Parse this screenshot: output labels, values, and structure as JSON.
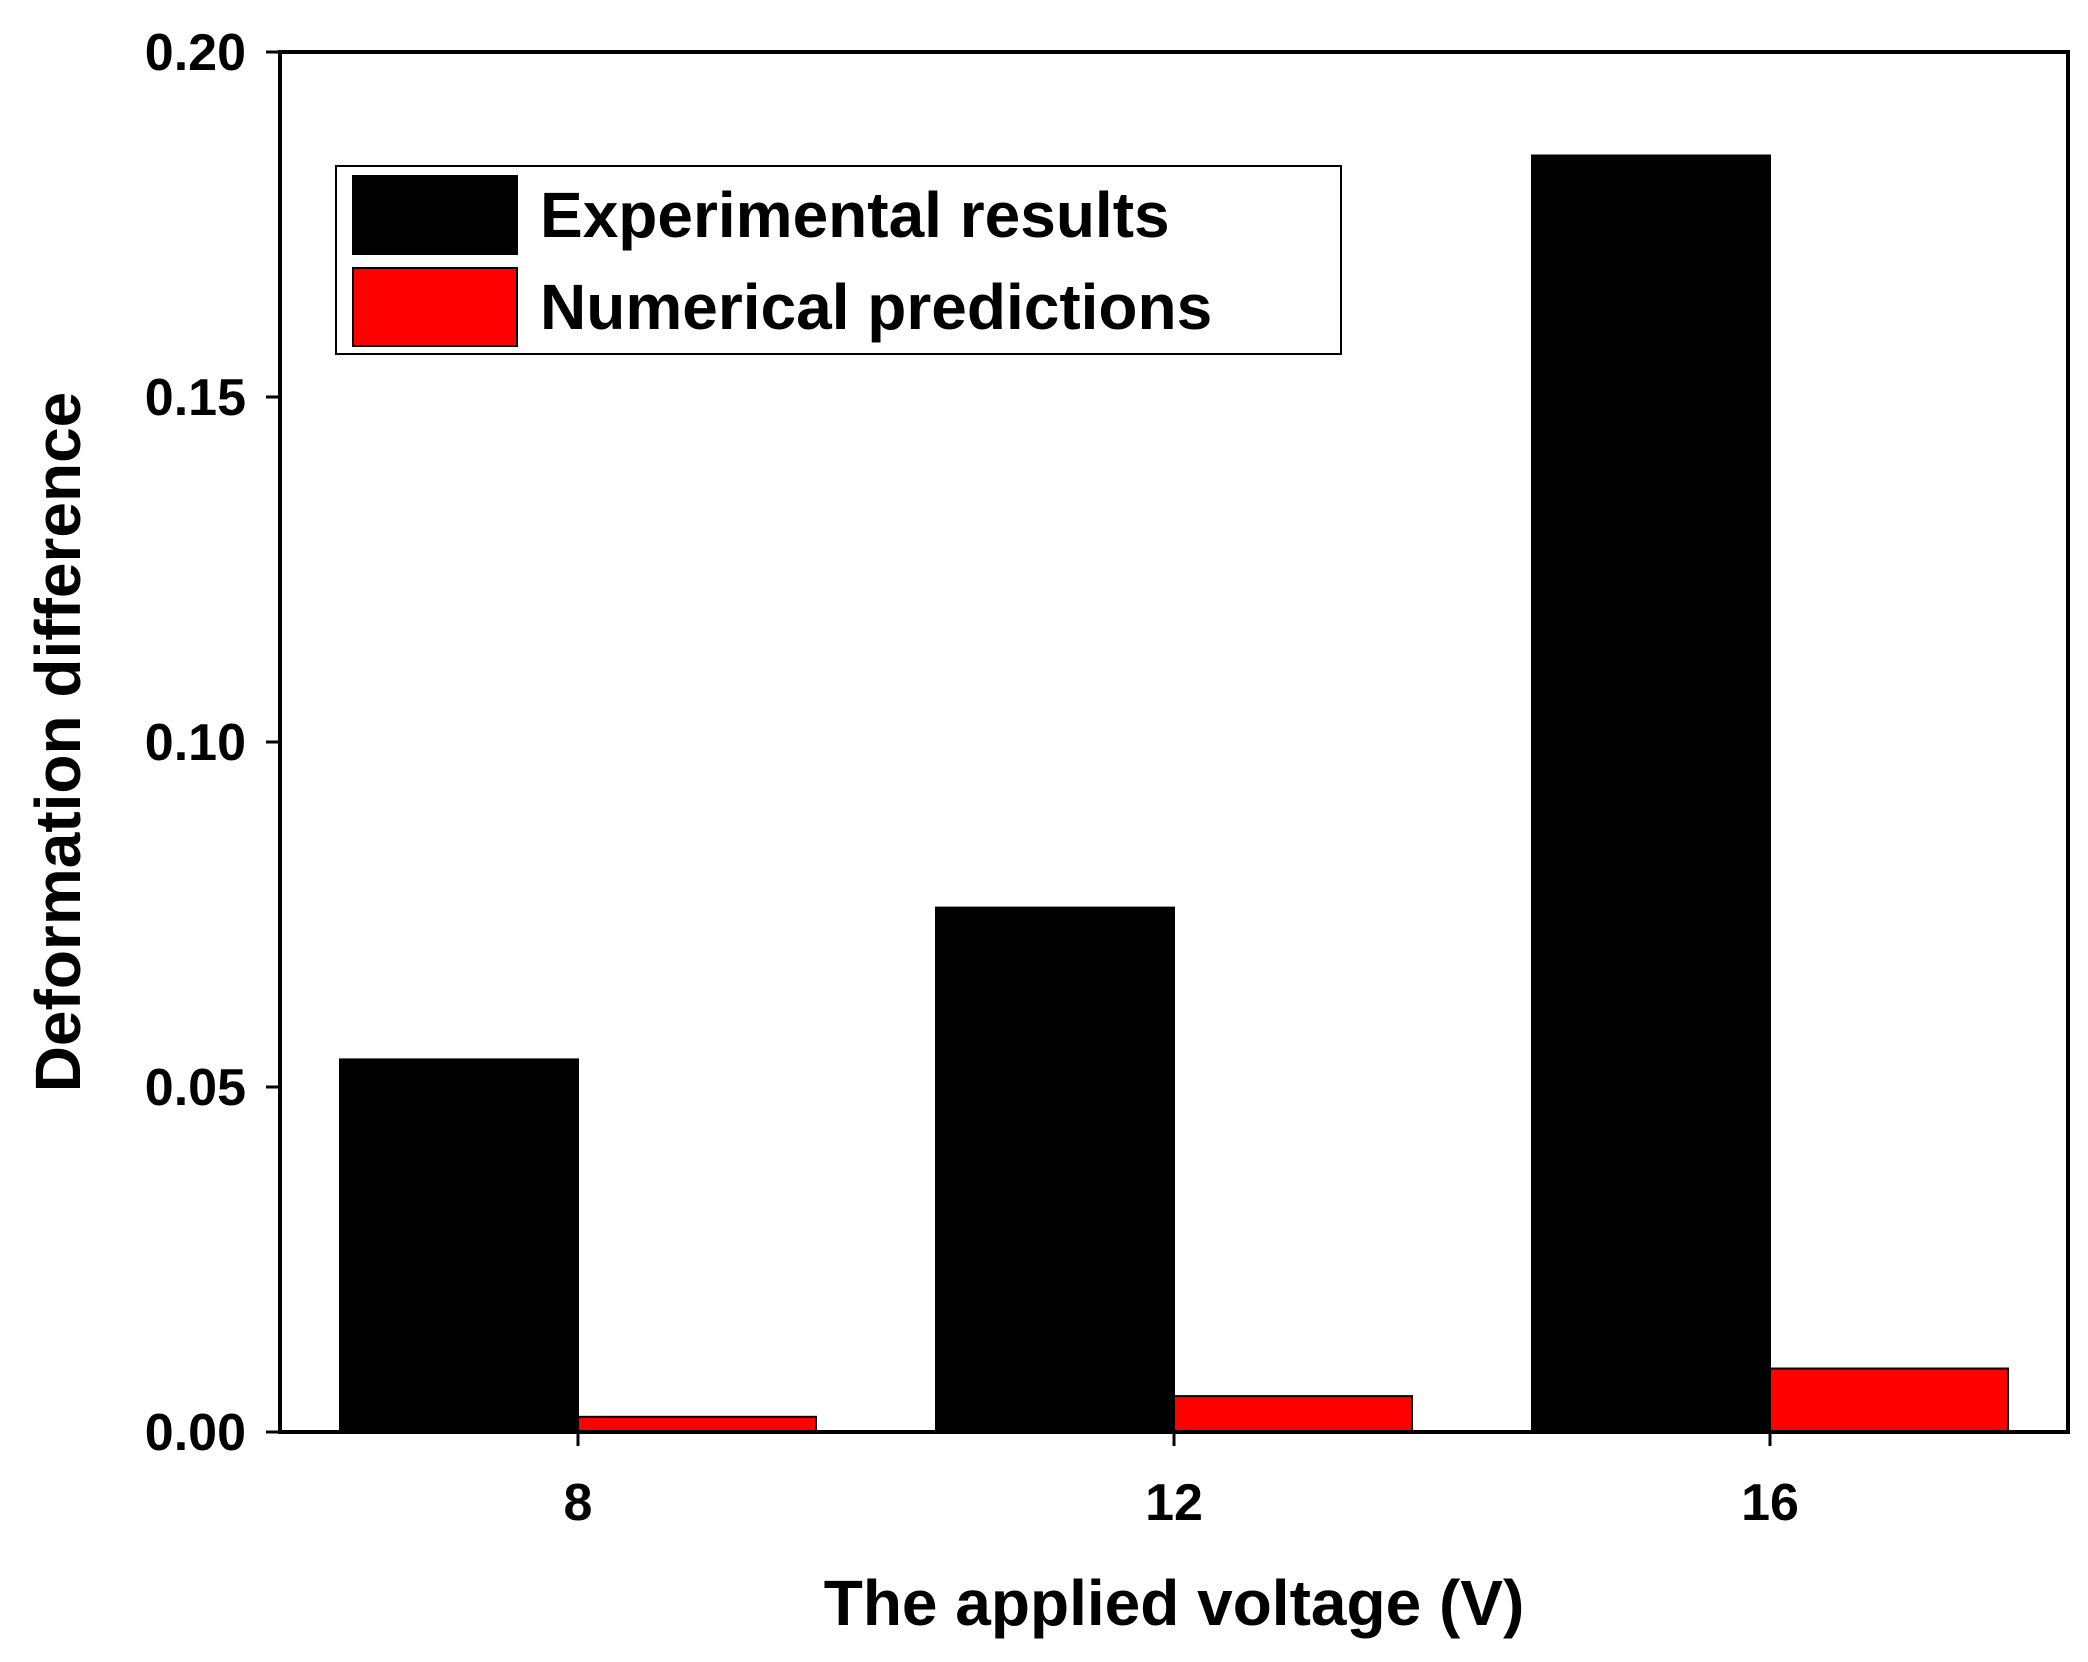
{
  "chart_data": {
    "type": "bar",
    "title": "",
    "xlabel": "The applied voltage (V)",
    "ylabel": "Deformation difference",
    "categories": [
      "8",
      "12",
      "16"
    ],
    "series": [
      {
        "name": "Experimental results",
        "color": "#000000",
        "values": [
          0.054,
          0.076,
          0.185
        ]
      },
      {
        "name": "Numerical predictions",
        "color": "#ff0000",
        "values": [
          0.0022,
          0.0052,
          0.0092
        ]
      }
    ],
    "ylim": [
      0,
      0.2
    ],
    "yticks": [
      0.0,
      0.05,
      0.1,
      0.15,
      0.2
    ],
    "ytick_labels": [
      "0.00",
      "0.05",
      "0.10",
      "0.15",
      "0.20"
    ],
    "grid": false,
    "legend_position": "top-left"
  }
}
